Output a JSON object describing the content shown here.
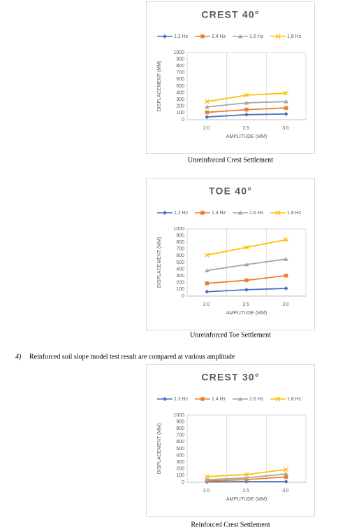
{
  "chart_data": [
    {
      "type": "line",
      "title": "CREST 40°",
      "categories": [
        "20",
        "25",
        "30"
      ],
      "y_label": "DISPLACEMENT (MM)",
      "x_label": "AMPLITUDE (MM)",
      "ylim": [
        0,
        1000
      ],
      "yticks": [
        0,
        100,
        200,
        300,
        400,
        500,
        600,
        700,
        800,
        900,
        1000
      ],
      "series": [
        {
          "name": "1.2 Hz",
          "color": "#4472c4",
          "marker": "diamond",
          "values": [
            40,
            75,
            85
          ]
        },
        {
          "name": "1.4 Hz",
          "color": "#ed7d31",
          "marker": "square",
          "values": [
            110,
            150,
            175
          ]
        },
        {
          "name": "1.6 Hz",
          "color": "#a5a5a5",
          "marker": "triangle",
          "values": [
            190,
            250,
            270
          ]
        },
        {
          "name": "1.8 Hz",
          "color": "#ffc000",
          "marker": "x",
          "values": [
            270,
            365,
            395
          ]
        }
      ]
    },
    {
      "type": "line",
      "title": "TOE 40°",
      "categories": [
        "20",
        "25",
        "30"
      ],
      "y_label": "DISPLACEMENT (MM)",
      "x_label": "AMPLITUDE (MM)",
      "ylim": [
        0,
        1000
      ],
      "yticks": [
        0,
        100,
        200,
        300,
        400,
        500,
        600,
        700,
        800,
        900,
        1000
      ],
      "series": [
        {
          "name": "1.2 Hz",
          "color": "#4472c4",
          "marker": "diamond",
          "values": [
            65,
            95,
            115
          ]
        },
        {
          "name": "1.4 Hz",
          "color": "#ed7d31",
          "marker": "square",
          "values": [
            190,
            235,
            305
          ]
        },
        {
          "name": "1.6 Hz",
          "color": "#a5a5a5",
          "marker": "triangle",
          "values": [
            380,
            470,
            550
          ]
        },
        {
          "name": "1.8 Hz",
          "color": "#ffc000",
          "marker": "x",
          "values": [
            610,
            725,
            840
          ]
        }
      ]
    },
    {
      "type": "line",
      "title": "CREST 30°",
      "categories": [
        "20",
        "25",
        "30"
      ],
      "y_label": "DISPLACEMENT (MM)",
      "x_label": "AMPLITUDE (MM)",
      "ylim": [
        0,
        1000
      ],
      "yticks": [
        0,
        100,
        200,
        300,
        400,
        500,
        600,
        700,
        800,
        900,
        1000
      ],
      "series": [
        {
          "name": "1.2 Hz",
          "color": "#4472c4",
          "marker": "diamond",
          "values": [
            5,
            10,
            10
          ]
        },
        {
          "name": "1.4 Hz",
          "color": "#ed7d31",
          "marker": "square",
          "values": [
            20,
            40,
            80
          ]
        },
        {
          "name": "1.6 Hz",
          "color": "#a5a5a5",
          "marker": "triangle",
          "values": [
            40,
            65,
            125
          ]
        },
        {
          "name": "1.8 Hz",
          "color": "#ffc000",
          "marker": "x",
          "values": [
            85,
            115,
            190
          ]
        }
      ]
    }
  ],
  "captions": [
    "Unreinforced Crest Settlement",
    "Unreinforced Toe Settlement",
    "Reinforced Crest Settlement"
  ],
  "list_item": {
    "number": "4)",
    "text": "Reinforced soil slope model test result are compared at various amplitude"
  }
}
